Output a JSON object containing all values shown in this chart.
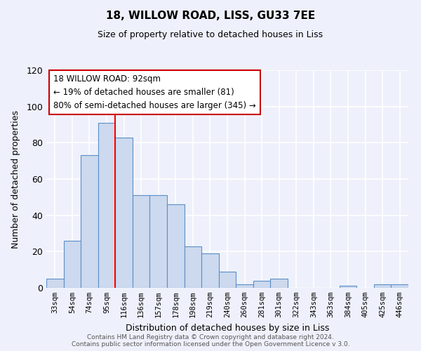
{
  "title": "18, WILLOW ROAD, LISS, GU33 7EE",
  "subtitle": "Size of property relative to detached houses in Liss",
  "xlabel": "Distribution of detached houses by size in Liss",
  "ylabel": "Number of detached properties",
  "bar_labels": [
    "33sqm",
    "54sqm",
    "74sqm",
    "95sqm",
    "116sqm",
    "136sqm",
    "157sqm",
    "178sqm",
    "198sqm",
    "219sqm",
    "240sqm",
    "260sqm",
    "281sqm",
    "301sqm",
    "322sqm",
    "343sqm",
    "363sqm",
    "384sqm",
    "405sqm",
    "425sqm",
    "446sqm"
  ],
  "bar_values": [
    5,
    26,
    73,
    91,
    83,
    51,
    51,
    46,
    23,
    19,
    9,
    2,
    4,
    5,
    0,
    0,
    0,
    1,
    0,
    2,
    2
  ],
  "bar_color": "#ccd9ee",
  "bar_edge_color": "#5b8fc7",
  "ylim": [
    0,
    120
  ],
  "red_line_x": 3.5,
  "annotation_title": "18 WILLOW ROAD: 92sqm",
  "annotation_line1": "← 19% of detached houses are smaller (81)",
  "annotation_line2": "80% of semi-detached houses are larger (345) →",
  "annotation_box_color": "#ffffff",
  "annotation_box_edge": "#cc0000",
  "footer1": "Contains HM Land Registry data © Crown copyright and database right 2024.",
  "footer2": "Contains public sector information licensed under the Open Government Licence v 3.0.",
  "background_color": "#eef1fb",
  "grid_color": "#ffffff",
  "yticks": [
    0,
    20,
    40,
    60,
    80,
    100,
    120
  ]
}
